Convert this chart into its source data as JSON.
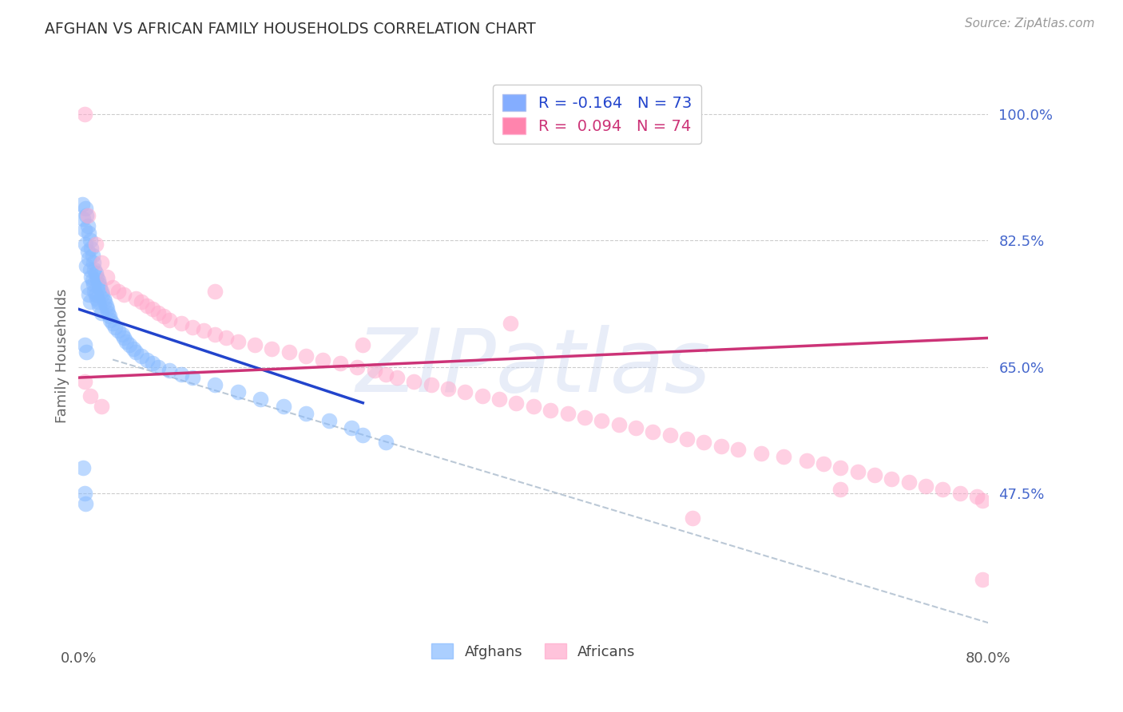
{
  "title": "AFGHAN VS AFRICAN FAMILY HOUSEHOLDS CORRELATION CHART",
  "source": "Source: ZipAtlas.com",
  "ylabel": "Family Households",
  "y_tick_labels": [
    "100.0%",
    "82.5%",
    "65.0%",
    "47.5%"
  ],
  "y_tick_values": [
    1.0,
    0.825,
    0.65,
    0.475
  ],
  "x_lim": [
    0.0,
    0.8
  ],
  "y_lim": [
    0.27,
    1.06
  ],
  "watermark": "ZIPatlas",
  "legend_line1": "R = -0.164   N = 73",
  "legend_line2": "R =  0.094   N = 74",
  "legend_color1": "#6699ff",
  "legend_color2": "#ff6699",
  "afghans_color": "#88bbff",
  "africans_color": "#ffaacc",
  "trendline_blue_color": "#2244cc",
  "trendline_pink_color": "#cc3377",
  "trendline_dashed_color": "#aabbcc",
  "afghans_x": [
    0.003,
    0.004,
    0.005,
    0.005,
    0.006,
    0.006,
    0.007,
    0.007,
    0.007,
    0.008,
    0.008,
    0.008,
    0.009,
    0.009,
    0.009,
    0.01,
    0.01,
    0.01,
    0.011,
    0.011,
    0.012,
    0.012,
    0.013,
    0.013,
    0.014,
    0.014,
    0.015,
    0.015,
    0.016,
    0.016,
    0.017,
    0.017,
    0.018,
    0.018,
    0.019,
    0.02,
    0.02,
    0.021,
    0.022,
    0.023,
    0.024,
    0.025,
    0.026,
    0.027,
    0.028,
    0.03,
    0.032,
    0.035,
    0.038,
    0.04,
    0.042,
    0.045,
    0.048,
    0.05,
    0.055,
    0.06,
    0.065,
    0.07,
    0.08,
    0.09,
    0.1,
    0.12,
    0.14,
    0.16,
    0.18,
    0.2,
    0.22,
    0.24,
    0.25,
    0.27,
    0.004,
    0.005,
    0.006
  ],
  "afghans_y": [
    0.875,
    0.855,
    0.84,
    0.68,
    0.87,
    0.82,
    0.86,
    0.79,
    0.67,
    0.845,
    0.81,
    0.76,
    0.835,
    0.8,
    0.75,
    0.825,
    0.785,
    0.74,
    0.815,
    0.775,
    0.805,
    0.77,
    0.795,
    0.765,
    0.785,
    0.755,
    0.78,
    0.75,
    0.775,
    0.745,
    0.77,
    0.74,
    0.765,
    0.735,
    0.76,
    0.755,
    0.725,
    0.75,
    0.745,
    0.74,
    0.735,
    0.73,
    0.725,
    0.72,
    0.715,
    0.71,
    0.705,
    0.7,
    0.695,
    0.69,
    0.685,
    0.68,
    0.675,
    0.67,
    0.665,
    0.66,
    0.655,
    0.65,
    0.645,
    0.64,
    0.635,
    0.625,
    0.615,
    0.605,
    0.595,
    0.585,
    0.575,
    0.565,
    0.555,
    0.545,
    0.51,
    0.475,
    0.46
  ],
  "africans_x": [
    0.005,
    0.008,
    0.015,
    0.02,
    0.025,
    0.03,
    0.035,
    0.04,
    0.05,
    0.055,
    0.06,
    0.065,
    0.07,
    0.075,
    0.08,
    0.09,
    0.1,
    0.11,
    0.12,
    0.13,
    0.14,
    0.155,
    0.17,
    0.185,
    0.2,
    0.215,
    0.23,
    0.245,
    0.26,
    0.27,
    0.28,
    0.295,
    0.31,
    0.325,
    0.34,
    0.355,
    0.37,
    0.385,
    0.4,
    0.415,
    0.43,
    0.445,
    0.46,
    0.475,
    0.49,
    0.505,
    0.52,
    0.535,
    0.55,
    0.565,
    0.58,
    0.6,
    0.62,
    0.64,
    0.655,
    0.67,
    0.685,
    0.7,
    0.715,
    0.73,
    0.745,
    0.76,
    0.775,
    0.79,
    0.795,
    0.005,
    0.01,
    0.02,
    0.12,
    0.25,
    0.38,
    0.54,
    0.67,
    0.795
  ],
  "africans_y": [
    1.0,
    0.86,
    0.82,
    0.795,
    0.775,
    0.76,
    0.755,
    0.75,
    0.745,
    0.74,
    0.735,
    0.73,
    0.725,
    0.72,
    0.715,
    0.71,
    0.705,
    0.7,
    0.695,
    0.69,
    0.685,
    0.68,
    0.675,
    0.67,
    0.665,
    0.66,
    0.655,
    0.65,
    0.645,
    0.64,
    0.635,
    0.63,
    0.625,
    0.62,
    0.615,
    0.61,
    0.605,
    0.6,
    0.595,
    0.59,
    0.585,
    0.58,
    0.575,
    0.57,
    0.565,
    0.56,
    0.555,
    0.55,
    0.545,
    0.54,
    0.535,
    0.53,
    0.525,
    0.52,
    0.515,
    0.51,
    0.505,
    0.5,
    0.495,
    0.49,
    0.485,
    0.48,
    0.475,
    0.47,
    0.465,
    0.63,
    0.61,
    0.595,
    0.755,
    0.68,
    0.71,
    0.44,
    0.48,
    0.355
  ],
  "blue_line_x": [
    0.0,
    0.25
  ],
  "blue_line_y": [
    0.73,
    0.6
  ],
  "pink_line_x": [
    0.0,
    0.8
  ],
  "pink_line_y": [
    0.635,
    0.69
  ],
  "dash_line_x": [
    0.03,
    0.8
  ],
  "dash_line_y": [
    0.66,
    0.295
  ]
}
